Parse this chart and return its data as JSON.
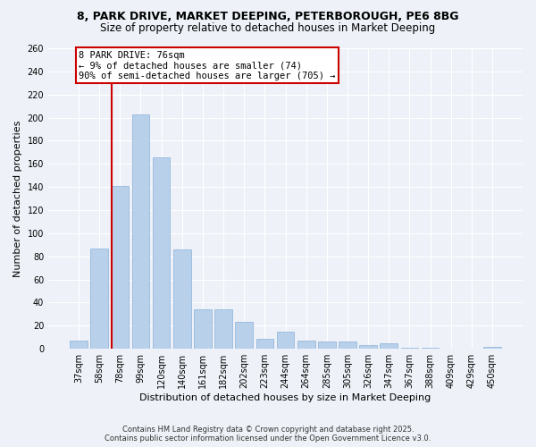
{
  "title_line1": "8, PARK DRIVE, MARKET DEEPING, PETERBOROUGH, PE6 8BG",
  "title_line2": "Size of property relative to detached houses in Market Deeping",
  "xlabel": "Distribution of detached houses by size in Market Deeping",
  "ylabel": "Number of detached properties",
  "categories": [
    "37sqm",
    "58sqm",
    "78sqm",
    "99sqm",
    "120sqm",
    "140sqm",
    "161sqm",
    "182sqm",
    "202sqm",
    "223sqm",
    "244sqm",
    "264sqm",
    "285sqm",
    "305sqm",
    "326sqm",
    "347sqm",
    "367sqm",
    "388sqm",
    "409sqm",
    "429sqm",
    "450sqm"
  ],
  "values": [
    7,
    87,
    141,
    203,
    166,
    86,
    34,
    34,
    23,
    9,
    15,
    7,
    6,
    6,
    3,
    5,
    1,
    1,
    0,
    0,
    2
  ],
  "bar_color": "#b8d0ea",
  "bar_edge_color": "#8ab0d8",
  "annotation_title": "8 PARK DRIVE: 76sqm",
  "annotation_line1": "← 9% of detached houses are smaller (74)",
  "annotation_line2": "90% of semi-detached houses are larger (705) →",
  "annotation_box_facecolor": "#ffffff",
  "annotation_box_edgecolor": "#cc0000",
  "vline_color": "#cc0000",
  "vline_x": 1.58,
  "ylim": [
    0,
    260
  ],
  "yticks": [
    0,
    20,
    40,
    60,
    80,
    100,
    120,
    140,
    160,
    180,
    200,
    220,
    240,
    260
  ],
  "background_color": "#eef2f8",
  "grid_color": "#ffffff",
  "footer_line1": "Contains HM Land Registry data © Crown copyright and database right 2025.",
  "footer_line2": "Contains public sector information licensed under the Open Government Licence v3.0.",
  "title_fontsize": 9,
  "subtitle_fontsize": 8.5,
  "xlabel_fontsize": 8,
  "ylabel_fontsize": 8,
  "tick_fontsize": 7,
  "annotation_fontsize": 7.5,
  "footer_fontsize": 6
}
